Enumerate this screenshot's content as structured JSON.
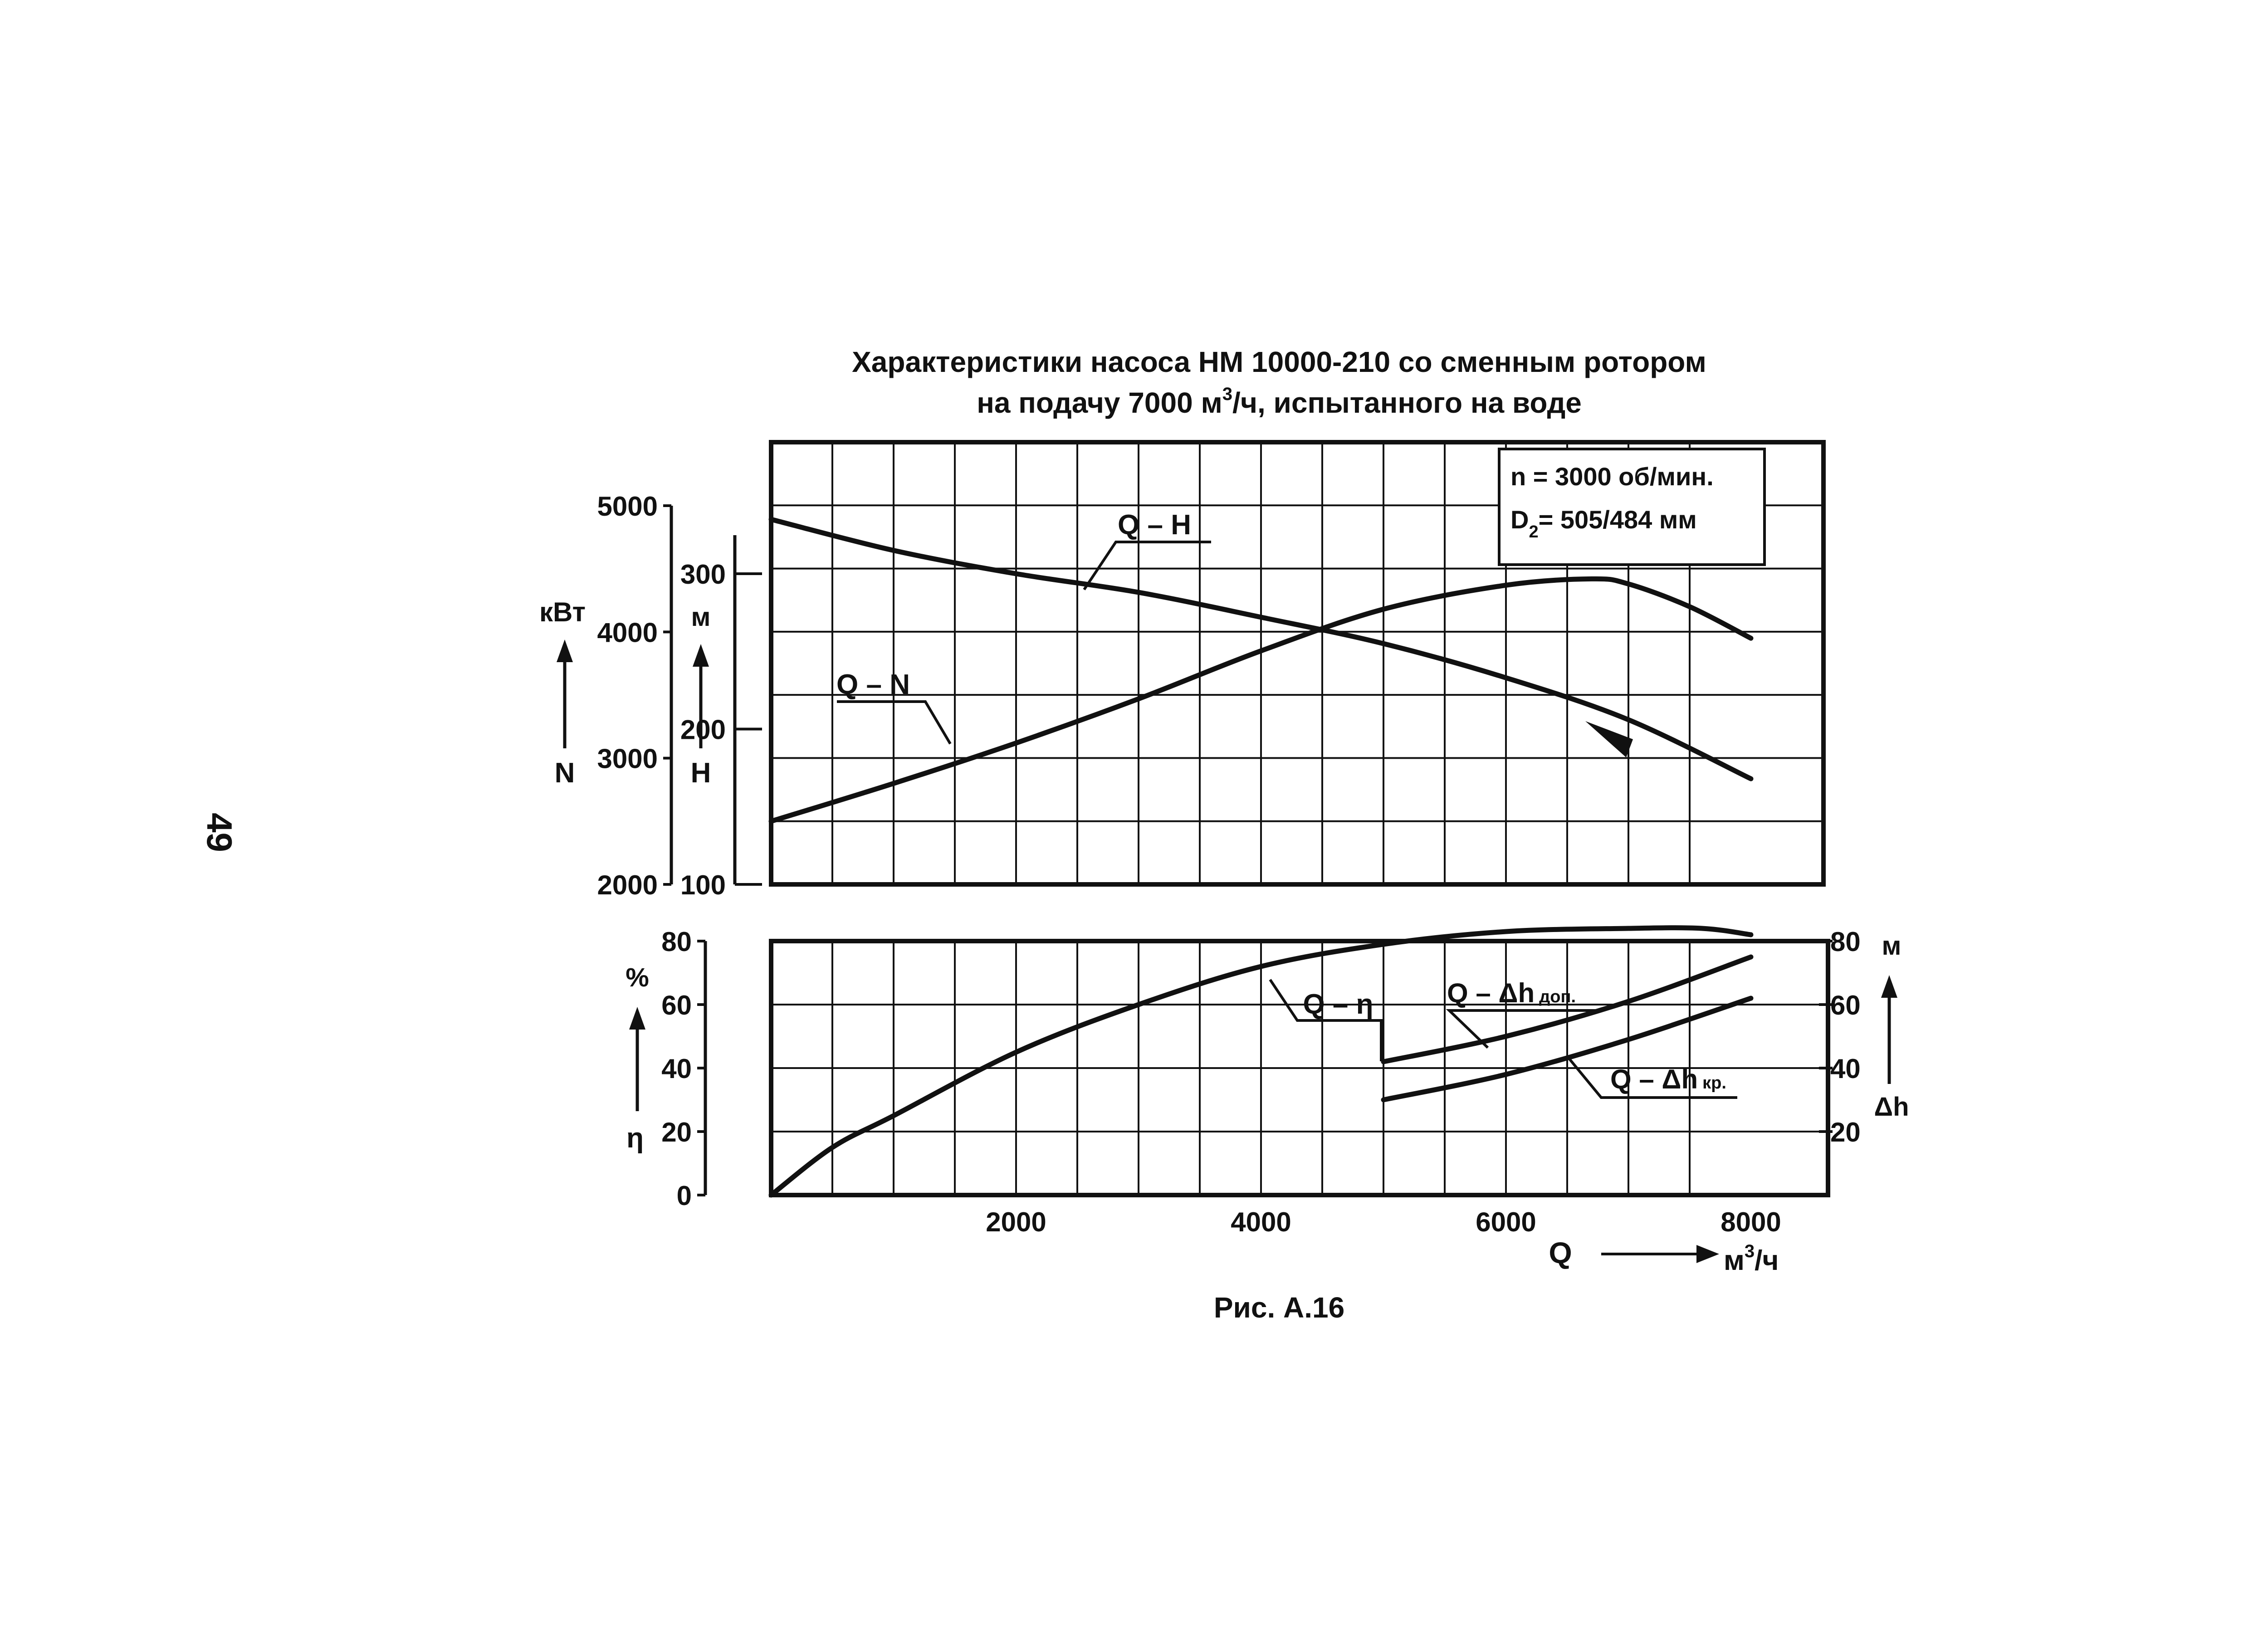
{
  "page": {
    "number": "49"
  },
  "figure": {
    "title_line1": "Характеристики насоса НМ 10000-210 со сменным ротором",
    "title_line2_pre": "на подачу 7000 м",
    "title_line2_sup": "3",
    "title_line2_post": "/ч, испытанного на воде",
    "caption": "Рис. А.16",
    "info_line1": "n = 3000 об/мин.",
    "info_line2_pre": "D",
    "info_line2_sub": "2",
    "info_line2_post": "= 505/484 мм"
  },
  "chart_data": {
    "type": "line",
    "x_axis": {
      "label": "Q",
      "unit_pre": "м",
      "unit_sup": "3",
      "unit_post": "/ч",
      "range": [
        0,
        8000
      ],
      "ticks": [
        "2000",
        "4000",
        "6000",
        "8000"
      ]
    },
    "n_axis": {
      "unit": "кВт",
      "symbol": "N",
      "range": [
        2000,
        5000
      ],
      "ticks": [
        "2000",
        "3000",
        "4000",
        "5000"
      ]
    },
    "h_axis": {
      "unit": "м",
      "symbol": "H",
      "range": [
        100,
        340
      ],
      "ticks": [
        "100",
        "200",
        "300"
      ]
    },
    "eta_axis": {
      "unit": "%",
      "symbol": "η",
      "range": [
        0,
        80
      ],
      "ticks": [
        "0",
        "20",
        "40",
        "60",
        "80"
      ]
    },
    "dh_axis": {
      "unit": "м",
      "symbol": "Δh",
      "range": [
        0,
        80
      ],
      "ticks": [
        "20",
        "40",
        "60",
        "80"
      ]
    },
    "grid": true,
    "series": [
      {
        "name": "Q – H",
        "axis": "h",
        "x": [
          0,
          1000,
          2000,
          3000,
          4000,
          5000,
          6000,
          7000,
          8000
        ],
        "y": [
          335,
          315,
          300,
          288,
          272,
          255,
          233,
          206,
          168
        ]
      },
      {
        "name": "Q – N",
        "axis": "n",
        "x": [
          0,
          1000,
          2000,
          3000,
          4000,
          5000,
          6000,
          6700,
          7000,
          7500,
          8000
        ],
        "y": [
          2500,
          2800,
          3120,
          3470,
          3850,
          4180,
          4370,
          4420,
          4380,
          4200,
          3950
        ]
      },
      {
        "name": "Q – η",
        "axis": "eta",
        "x": [
          0,
          500,
          1000,
          2000,
          3000,
          4000,
          5000,
          6000,
          7000,
          7600,
          8000
        ],
        "y": [
          0,
          15,
          25,
          45,
          60,
          72,
          79,
          83,
          84,
          84,
          82
        ]
      },
      {
        "name": "Q – Δh доп.",
        "axis": "dh",
        "x": [
          5000,
          6000,
          7000,
          8000
        ],
        "y": [
          42,
          50,
          61,
          75
        ]
      },
      {
        "name": "Q – Δh кр.",
        "axis": "dh",
        "x": [
          5000,
          6000,
          7000,
          8000
        ],
        "y": [
          30,
          38,
          49,
          62
        ]
      }
    ],
    "labels": {
      "qh": "Q – H",
      "qn": "Q – N",
      "qeta": "Q – η",
      "qdh_dop_pre": "Q – Δh",
      "qdh_dop_post": "доп.",
      "qdh_kr_pre": "Q – Δh",
      "qdh_kr_post": "кр."
    }
  }
}
